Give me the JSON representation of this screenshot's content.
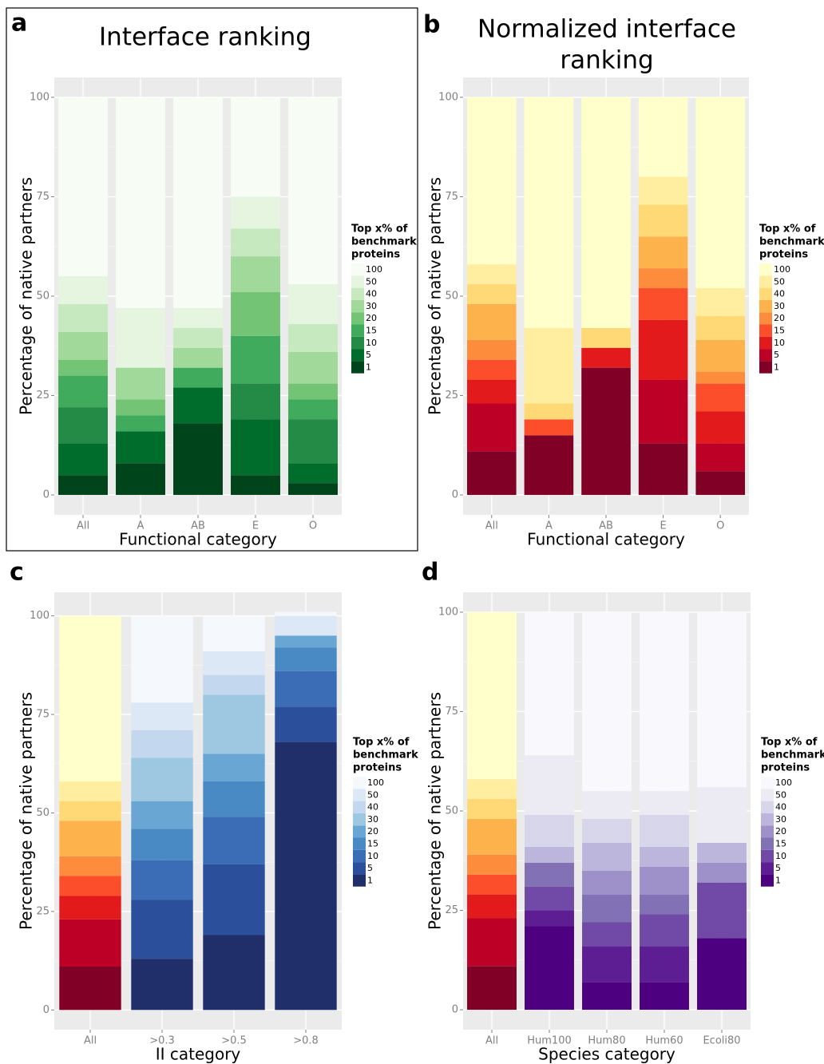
{
  "chart_data": [
    {
      "type": "stacked-bar",
      "panel_label": "a",
      "title": "Interface ranking",
      "xlabel": "Functional category",
      "ylabel": "Percentage of native partners",
      "legend_title": [
        "Top x% of",
        "benchmark",
        "proteins"
      ],
      "categories": [
        "All",
        "A",
        "AB",
        "E",
        "O"
      ],
      "ylim": [
        -5,
        105
      ],
      "yticks": [
        0,
        25,
        50,
        75,
        100
      ],
      "grid": true,
      "series": [
        {
          "name": "1",
          "color": "#00441b",
          "values": [
            5,
            8,
            18,
            5,
            3
          ]
        },
        {
          "name": "5",
          "color": "#006d2c",
          "values": [
            8,
            8,
            9,
            14,
            5
          ]
        },
        {
          "name": "10",
          "color": "#238b45",
          "values": [
            9,
            0,
            0,
            9,
            11
          ]
        },
        {
          "name": "15",
          "color": "#41ab5d",
          "values": [
            8,
            4,
            5,
            12,
            5
          ]
        },
        {
          "name": "20",
          "color": "#74c476",
          "values": [
            4,
            4,
            0,
            11,
            4
          ]
        },
        {
          "name": "30",
          "color": "#a1d99b",
          "values": [
            7,
            8,
            5,
            9,
            8
          ]
        },
        {
          "name": "40",
          "color": "#c7e9c0",
          "values": [
            7,
            0,
            5,
            7,
            7
          ]
        },
        {
          "name": "50",
          "color": "#e5f5e0",
          "values": [
            7,
            15,
            5,
            8,
            10
          ]
        },
        {
          "name": "100",
          "color": "#f7fcf5",
          "values": [
            45,
            53,
            53,
            25,
            47
          ]
        }
      ]
    },
    {
      "type": "stacked-bar",
      "panel_label": "b",
      "title": [
        "Normalized interface",
        "ranking"
      ],
      "xlabel": "Functional category",
      "ylabel": "Percentage of native partners",
      "legend_title": [
        "Top x% of",
        "benchmark",
        "proteins"
      ],
      "categories": [
        "All",
        "A",
        "AB",
        "E",
        "O"
      ],
      "ylim": [
        -5,
        105
      ],
      "yticks": [
        0,
        25,
        50,
        75,
        100
      ],
      "grid": true,
      "series": [
        {
          "name": "1",
          "color": "#800026",
          "values": [
            11,
            15,
            32,
            13,
            6
          ]
        },
        {
          "name": "5",
          "color": "#bd0026",
          "values": [
            12,
            0,
            0,
            16,
            7
          ]
        },
        {
          "name": "10",
          "color": "#e31a1c",
          "values": [
            6,
            0,
            5,
            15,
            8
          ]
        },
        {
          "name": "15",
          "color": "#fc4e2a",
          "values": [
            5,
            4,
            0,
            8,
            7
          ]
        },
        {
          "name": "20",
          "color": "#fd8d3c",
          "values": [
            5,
            0,
            0,
            5,
            3
          ]
        },
        {
          "name": "30",
          "color": "#feb24c",
          "values": [
            9,
            0,
            0,
            8,
            8
          ]
        },
        {
          "name": "40",
          "color": "#fed976",
          "values": [
            5,
            4,
            5,
            8,
            6
          ]
        },
        {
          "name": "50",
          "color": "#ffeda0",
          "values": [
            5,
            19,
            0,
            7,
            7
          ]
        },
        {
          "name": "100",
          "color": "#ffffcc",
          "values": [
            42,
            58,
            58,
            20,
            48
          ]
        }
      ]
    },
    {
      "type": "stacked-bar",
      "panel_label": "c",
      "xlabel": "II category",
      "ylabel": "Percentage of native partners",
      "legend_title": [
        "Top x% of",
        "benchmark",
        "proteins"
      ],
      "categories": [
        "All",
        ">0.3",
        ">0.5",
        ">0.8"
      ],
      "ylim": [
        -5,
        106
      ],
      "yticks": [
        0,
        25,
        50,
        75,
        100
      ],
      "grid": true,
      "series": [
        {
          "name": "1",
          "color": [
            "#800026",
            "#202e6a",
            "#202e6a",
            "#202e6a"
          ],
          "values": [
            11,
            13,
            19,
            68
          ]
        },
        {
          "name": "5",
          "color": [
            "#bd0026",
            "#2c4f9c",
            "#2c4f9c",
            "#2c4f9c"
          ],
          "values": [
            12,
            15,
            18,
            9
          ]
        },
        {
          "name": "10",
          "color": [
            "#e31a1c",
            "#3a6db5",
            "#3a6db5",
            "#3a6db5"
          ],
          "values": [
            6,
            10,
            12,
            9
          ]
        },
        {
          "name": "15",
          "color": [
            "#fc4e2a",
            "#4a8ac4",
            "#4a8ac4",
            "#4a8ac4"
          ],
          "values": [
            5,
            8,
            9,
            6
          ]
        },
        {
          "name": "20",
          "color": [
            "#fd8d3c",
            "#6aa6d4",
            "#6aa6d4",
            "#6aa6d4"
          ],
          "values": [
            5,
            7,
            7,
            3
          ]
        },
        {
          "name": "30",
          "color": [
            "#feb24c",
            "#9ec8e2",
            "#9ec8e2",
            "#9ec8e2"
          ],
          "values": [
            9,
            11,
            15,
            0
          ]
        },
        {
          "name": "40",
          "color": [
            "#fed976",
            "#c3d8ee",
            "#c3d8ee",
            "#c3d8ee"
          ],
          "values": [
            5,
            7,
            5,
            0
          ]
        },
        {
          "name": "50",
          "color": [
            "#ffeda0",
            "#dce8f5",
            "#dce8f5",
            "#dce8f5"
          ],
          "values": [
            5,
            7,
            6,
            5
          ]
        },
        {
          "name": "100",
          "color": [
            "#ffffcc",
            "#f5f9fe",
            "#f5f9fe",
            "#f5f9fe"
          ],
          "values": [
            42,
            22,
            9,
            1
          ]
        }
      ]
    },
    {
      "type": "stacked-bar",
      "panel_label": "d",
      "xlabel": "Species category",
      "ylabel": "Percentage of native partners",
      "legend_title": [
        "Top x% of",
        "benchmark",
        "proteins"
      ],
      "categories": [
        "All",
        "Hum100",
        "Hum80",
        "Hum60",
        "Ecoli80"
      ],
      "ylim": [
        -5,
        105
      ],
      "yticks": [
        0,
        25,
        50,
        75,
        100
      ],
      "grid": true,
      "series": [
        {
          "name": "1",
          "color": [
            "#800026",
            "#4d007f",
            "#4d007f",
            "#4d007f",
            "#4d007f"
          ],
          "values": [
            11,
            21,
            7,
            7,
            18
          ]
        },
        {
          "name": "5",
          "color": [
            "#bd0026",
            "#5e1e93",
            "#5e1e93",
            "#5e1e93",
            "#5e1e93"
          ],
          "values": [
            12,
            4,
            9,
            9,
            0
          ]
        },
        {
          "name": "10",
          "color": [
            "#e31a1c",
            "#704aa6",
            "#704aa6",
            "#704aa6",
            "#704aa6"
          ],
          "values": [
            6,
            6,
            6,
            8,
            14
          ]
        },
        {
          "name": "15",
          "color": [
            "#fc4e2a",
            "#8271b5",
            "#8271b5",
            "#8271b5",
            "#8271b5"
          ],
          "values": [
            5,
            6,
            7,
            5,
            0
          ]
        },
        {
          "name": "20",
          "color": [
            "#fd8d3c",
            "#9e90c8",
            "#9e90c8",
            "#9e90c8",
            "#9e90c8"
          ],
          "values": [
            5,
            0,
            6,
            7,
            5
          ]
        },
        {
          "name": "30",
          "color": [
            "#feb24c",
            "#bcb6dc",
            "#bcb6dc",
            "#bcb6dc",
            "#bcb6dc"
          ],
          "values": [
            9,
            4,
            7,
            5,
            5
          ]
        },
        {
          "name": "40",
          "color": [
            "#fed976",
            "#d8d6ea",
            "#d8d6ea",
            "#d8d6ea",
            "#d8d6ea"
          ],
          "values": [
            5,
            8,
            6,
            8,
            0
          ]
        },
        {
          "name": "50",
          "color": [
            "#ffeda0",
            "#ecebf4",
            "#ecebf4",
            "#ecebf4",
            "#ecebf4"
          ],
          "values": [
            5,
            15,
            7,
            6,
            14
          ]
        },
        {
          "name": "100",
          "color": [
            "#ffffcc",
            "#f9f8fc",
            "#f9f8fc",
            "#f9f8fc",
            "#f9f8fc"
          ],
          "values": [
            42,
            36,
            45,
            45,
            44
          ]
        }
      ]
    }
  ]
}
